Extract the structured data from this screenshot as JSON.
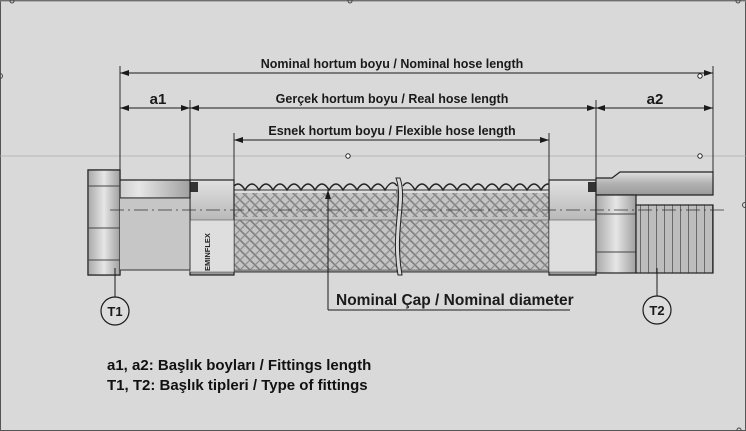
{
  "dimensions": {
    "nominal_length": "Nominal hortum boyu / Nominal hose length",
    "real_length": "Gerçek hortum boyu / Real hose length",
    "flexible_length": "Esnek hortum boyu / Flexible hose length",
    "a1": "a1",
    "a2": "a2"
  },
  "callouts": {
    "t1": "T1",
    "t2": "T2",
    "nominal_diameter": "Nominal Çap / Nominal diameter"
  },
  "brand_mark": "EMINFLEX",
  "legend": {
    "line1": "a1, a2: Başlık boyları / Fittings length",
    "line2": "T1, T2: Başlık tipleri / Type of fittings"
  },
  "colors": {
    "background": "#ffffff",
    "panel": "#d9d9d9",
    "line": "#222222",
    "metal": "#b9b9b9"
  }
}
